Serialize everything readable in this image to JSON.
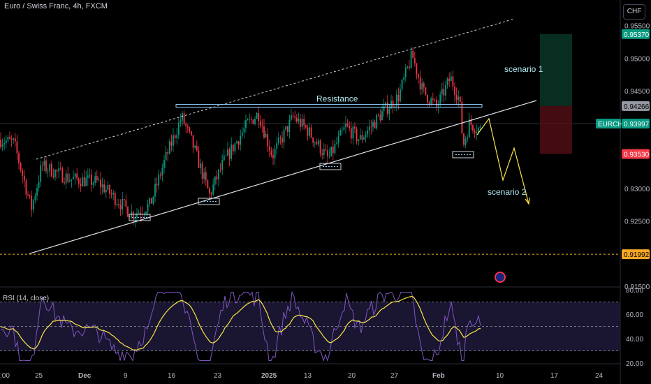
{
  "header": {
    "title": "Euro / Swiss Franc, 4h, FXCM",
    "currency_button": "CHF"
  },
  "chart_data": [
    {
      "type": "candlestick",
      "ylim": [
        0.915,
        0.957
      ],
      "price_axis": [
        "0.95500",
        "0.95000",
        "0.94500",
        "0.93000",
        "0.92500",
        "0.91500"
      ],
      "price_badges": [
        {
          "label": "0.95370",
          "value": 0.9537,
          "color": "#089981",
          "text_color": "#ffffff"
        },
        {
          "label": "0.94266",
          "value": 0.94266,
          "color": "#9598a1",
          "text_color": "#000000"
        },
        {
          "label": "EURCHF",
          "value": 0.93997,
          "color": "#089981",
          "text_color": "#ffffff",
          "offset": -37
        },
        {
          "label": "0.93997",
          "value": 0.93997,
          "color": "#089981",
          "text_color": "#ffffff"
        },
        {
          "label": "0.93530",
          "value": 0.9353,
          "color": "#f23645",
          "text_color": "#ffffff"
        },
        {
          "label": "0.91992",
          "value": 0.91992,
          "color": "#f9a825",
          "text_color": "#000000"
        }
      ],
      "x_axis": [
        ":00",
        "25",
        "Dec",
        "9",
        "16",
        "23",
        "2025",
        "13",
        "20",
        "27",
        "Feb",
        "10",
        "17",
        "24"
      ],
      "annotations": [
        {
          "text": "Resistance",
          "color": "#b2ebf2"
        },
        {
          "text": "scenario 1",
          "color": "#b2ebf2"
        },
        {
          "text": "scenario 2",
          "color": "#b2ebf2"
        }
      ],
      "anchors": [
        [
          0,
          0.9375
        ],
        [
          20,
          0.937
        ],
        [
          45,
          0.927
        ],
        [
          60,
          0.9335
        ],
        [
          100,
          0.9315
        ],
        [
          140,
          0.931
        ],
        [
          190,
          0.926
        ],
        [
          215,
          0.9275
        ],
        [
          235,
          0.934
        ],
        [
          260,
          0.941
        ],
        [
          275,
          0.937
        ],
        [
          300,
          0.929
        ],
        [
          320,
          0.934
        ],
        [
          355,
          0.94
        ],
        [
          370,
          0.9415
        ],
        [
          390,
          0.935
        ],
        [
          420,
          0.941
        ],
        [
          440,
          0.939
        ],
        [
          470,
          0.9345
        ],
        [
          495,
          0.9395
        ],
        [
          515,
          0.9375
        ],
        [
          535,
          0.94
        ],
        [
          550,
          0.942
        ],
        [
          570,
          0.944
        ],
        [
          590,
          0.9505
        ],
        [
          605,
          0.945
        ],
        [
          625,
          0.9425
        ],
        [
          645,
          0.947
        ],
        [
          658,
          0.9435
        ],
        [
          663,
          0.9365
        ],
        [
          672,
          0.94
        ],
        [
          688,
          0.939
        ]
      ],
      "resistance_level": 0.9427,
      "support_line": [
        [
          42,
          0.92
        ],
        [
          768,
          0.9435
        ]
      ],
      "channel_top": [
        [
          52,
          0.9345
        ],
        [
          735,
          0.956
        ]
      ],
      "current_price": 0.93997,
      "low_level": 0.91992
    },
    {
      "type": "line",
      "title": "RSI (14, close)",
      "ylim": [
        20,
        80
      ],
      "y_axis": [
        "80.00",
        "60.00",
        "40.00",
        "20.00"
      ],
      "bands": [
        30,
        50,
        70
      ]
    }
  ]
}
